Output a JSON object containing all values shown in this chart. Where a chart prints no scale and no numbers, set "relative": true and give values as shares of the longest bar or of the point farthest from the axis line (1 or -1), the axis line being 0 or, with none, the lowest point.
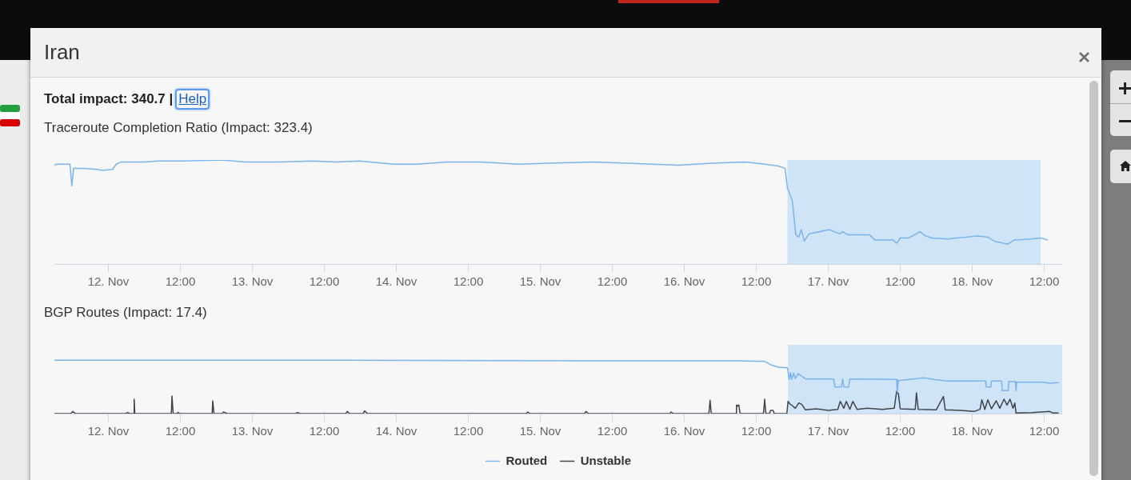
{
  "chart_data": [
    {
      "type": "line",
      "title": "Traceroute Completion Ratio (Impact: 323.4)",
      "annotations": [
        "Iran",
        "Total impact: 340.7 |",
        "Help"
      ],
      "relative": true,
      "tick_labels": "x",
      "x": [
        "--11-11T15:00",
        "--11-11T15:24",
        "--11-11T17:36",
        "--11-11T17:54",
        "--11-11T18:12",
        "--11-11T19:54",
        "--11-11T22:12",
        "--11-11T23:00",
        "--11-12T00:42",
        "--11-12T01:18",
        "--11-12T02:06",
        "--11-12T06:00",
        "--11-12T08:18",
        "--11-12T12:42",
        "--11-12T18:54",
        "--11-12T22:48",
        "--11-13T04:30",
        "--11-13T10:06",
        "--11-13T14:00",
        "--11-13T17:54",
        "--11-13T23:30",
        "--11-14T03:24",
        "--11-14T08:30",
        "--11-14T14:06",
        "--11-14T20:18",
        "--11-15T01:18",
        "--11-15T08:54",
        "--11-15T14:30",
        "--11-15T23:00",
        "--11-16T04:36",
        "--11-16T10:12",
        "--11-16T13:30",
        "--11-16T15:48",
        "--11-16T16:48",
        "--11-16T17:12",
        "--11-16T18:00",
        "--11-16T18:36",
        "--11-16T19:06",
        "--11-16T19:30",
        "--11-16T20:00",
        "--11-16T20:48",
        "--11-17T00:12",
        "--11-17T01:54",
        "--11-17T02:24",
        "--11-17T03:18",
        "--11-17T06:54",
        "--11-17T07:48",
        "--11-17T10:48",
        "--11-17T11:24",
        "--11-17T12:00",
        "--11-17T13:24",
        "--11-17T15:18",
        "--11-17T16:12",
        "--11-17T17:18",
        "--11-17T19:48",
        "--11-18T00:54",
        "--11-18T02:30",
        "--11-18T03:42",
        "--11-18T05:54",
        "--11-18T07:00",
        "--11-18T09:48",
        "--11-18T11:30",
        "--11-18T12:36"
      ],
      "series": [
        {
          "color": "#7cb5ec",
          "values": [
            0.95,
            0.96,
            0.96,
            0.75,
            0.92,
            0.92,
            0.91,
            0.9,
            0.91,
            0.96,
            0.98,
            0.98,
            0.99,
            0.99,
            1,
            0.98,
            0.98,
            0.99,
            0.98,
            0.99,
            0.96,
            0.96,
            0.98,
            0.98,
            0.96,
            0.97,
            0.98,
            0.97,
            0.95,
            0.97,
            0.98,
            0.96,
            0.94,
            0.92,
            0.73,
            0.61,
            0.28,
            0.26,
            0.33,
            0.22,
            0.29,
            0.33,
            0.29,
            0.31,
            0.28,
            0.28,
            0.23,
            0.23,
            0.2,
            0.25,
            0.25,
            0.31,
            0.27,
            0.25,
            0.24,
            0.27,
            0.26,
            0.22,
            0.19,
            0.23,
            0.24,
            0.25,
            0.23
          ]
        }
      ],
      "xlim": [
        "--11-11T15:00",
        "--11-18T15:00"
      ],
      "xticks": [
        {
          "value": "--11-12",
          "label": "12. Nov"
        },
        {
          "value": "--11-12T12:00",
          "label": "12:00"
        },
        {
          "value": "--11-13",
          "label": "13. Nov"
        },
        {
          "value": "--11-13T12:00",
          "label": "12:00"
        },
        {
          "value": "--11-14",
          "label": "14. Nov"
        },
        {
          "value": "--11-14T12:00",
          "label": "12:00"
        },
        {
          "value": "--11-15",
          "label": "15. Nov"
        },
        {
          "value": "--11-15T12:00",
          "label": "12:00"
        },
        {
          "value": "--11-16",
          "label": "16. Nov"
        },
        {
          "value": "--11-16T12:00",
          "label": "12:00"
        },
        {
          "value": "--11-17",
          "label": "17. Nov"
        },
        {
          "value": "--11-17T12:00",
          "label": "12:00"
        },
        {
          "value": "--11-18",
          "label": "18. Nov"
        },
        {
          "value": "--11-18T12:00",
          "label": "12:00"
        }
      ],
      "bands": [
        {
          "axis": "x",
          "from": "--11-16T17:12",
          "to": "--11-18T11:24",
          "color": "#cfe4f6"
        }
      ]
    },
    {
      "type": "line",
      "title": "BGP Routes (Impact: 17.4)",
      "relative": true,
      "tick_labels": "x",
      "legend": "bottom",
      "series": [
        {
          "name": "Routed",
          "color": "#7cb5ec",
          "x": [
            "--11-11T15:00",
            "--11-13T16:00",
            "--11-15T08:00",
            "--11-16T08:54",
            "--11-16T13:24",
            "--11-16T14:30",
            "--11-16T15:42",
            "--11-16T17:12",
            "--11-16T17:30",
            "--11-16T17:42",
            "--11-16T17:54",
            "--11-16T18:12",
            "--11-16T18:30",
            "--11-16T19:00",
            "--11-16T20:12",
            "--11-17T00:54",
            "--11-17T01:06",
            "--11-17T02:12",
            "--11-17T02:24",
            "--11-17T02:36",
            "--11-17T03:24",
            "--11-17T03:36",
            "--11-17T10:00",
            "--11-17T11:24",
            "--11-17T11:30",
            "--11-17T11:42",
            "--11-17T15:54",
            "--11-17T17:36",
            "--11-17T19:48",
            "--11-18T02:12",
            "--11-18T02:18",
            "--11-18T03:06",
            "--11-18T03:12",
            "--11-18T04:54",
            "--11-18T05:00",
            "--11-18T06:00",
            "--11-18T06:06",
            "--11-18T07:12",
            "--11-18T07:18",
            "--11-18T07:24",
            "--11-18T11:42",
            "--11-18T12:54",
            "--11-18T14:24"
          ],
          "values": [
            1,
            1,
            0.99,
            0.99,
            0.98,
            0.91,
            0.87,
            0.86,
            0.64,
            0.77,
            0.64,
            0.76,
            0.66,
            0.75,
            0.65,
            0.65,
            0.5,
            0.5,
            0.65,
            0.5,
            0.5,
            0.65,
            0.64,
            0.64,
            0.4,
            0.62,
            0.67,
            0.64,
            0.61,
            0.61,
            0.5,
            0.5,
            0.61,
            0.61,
            0.43,
            0.43,
            0.6,
            0.6,
            0.43,
            0.59,
            0.59,
            0.57,
            0.58
          ]
        },
        {
          "name": "Unstable",
          "color": "#434348",
          "x": [
            "--11-11T15:00",
            "--11-11T17:42",
            "--11-11T18:06",
            "--11-11T18:30",
            "--11-12T02:54",
            "--11-12T03:12",
            "--11-12T03:30",
            "--11-12T04:12",
            "--11-12T04:18",
            "--11-12T04:24",
            "--11-12T10:30",
            "--11-12T10:36",
            "--11-12T10:48",
            "--11-12T11:24",
            "--11-12T11:36",
            "--11-12T11:54",
            "--11-12T17:18",
            "--11-12T17:24",
            "--11-12T17:36",
            "--11-12T19:00",
            "--11-12T19:12",
            "--11-12T19:48",
            "--11-13T07:18",
            "--11-13T07:30",
            "--11-13T08:00",
            "--11-13T15:36",
            "--11-13T15:48",
            "--11-13T16:12",
            "--11-13T18:30",
            "--11-13T18:42",
            "--11-13T19:12",
            "--11-14T21:42",
            "--11-14T21:54",
            "--11-14T22:18",
            "--11-15T07:24",
            "--11-15T07:36",
            "--11-15T08:00",
            "--11-15T21:36",
            "--11-15T21:48",
            "--11-15T22:12",
            "--11-16T04:06",
            "--11-16T04:18",
            "--11-16T04:30",
            "--11-16T08:36",
            "--11-16T08:42",
            "--11-16T08:54",
            "--11-16T09:06",
            "--11-16T09:18",
            "--11-16T13:12",
            "--11-16T13:24",
            "--11-16T13:36",
            "--11-16T14:12",
            "--11-16T14:24",
            "--11-16T14:48",
            "--11-16T15:00",
            "--11-16T17:06",
            "--11-16T17:18",
            "--11-16T17:36",
            "--11-16T18:00",
            "--11-16T18:30",
            "--11-16T19:06",
            "--11-16T19:36",
            "--11-16T20:12",
            "--11-16T22:00",
            "--11-17T00:00",
            "--11-17T01:36",
            "--11-17T02:00",
            "--11-17T02:36",
            "--11-17T03:00",
            "--11-17T03:36",
            "--11-17T04:06",
            "--11-17T04:48",
            "--11-17T06:30",
            "--11-17T09:00",
            "--11-17T11:00",
            "--11-17T11:24",
            "--11-17T11:42",
            "--11-17T12:00",
            "--11-17T14:30",
            "--11-17T14:42",
            "--11-17T15:00",
            "--11-17T18:00",
            "--11-17T19:12",
            "--11-17T19:30",
            "--11-17T22:00",
            "--11-18T00:18",
            "--11-18T01:18",
            "--11-18T01:36",
            "--11-18T02:06",
            "--11-18T02:36",
            "--11-18T03:12",
            "--11-18T04:00",
            "--11-18T04:36",
            "--11-18T05:18",
            "--11-18T05:48",
            "--11-18T06:18",
            "--11-18T06:48",
            "--11-18T07:06",
            "--11-18T07:18",
            "--11-18T10:00",
            "--11-18T12:54",
            "--11-18T13:30",
            "--11-18T14:24"
          ],
          "values": [
            0,
            0,
            0.04,
            0,
            0,
            0.02,
            0,
            0,
            0.27,
            0,
            0,
            0.33,
            0,
            0,
            0.02,
            0,
            0,
            0.24,
            0,
            0,
            0.03,
            0,
            0,
            0.02,
            0,
            0,
            0.04,
            0,
            0,
            0.05,
            0,
            0,
            0.03,
            0,
            0,
            0.04,
            0,
            0,
            0.03,
            0,
            0,
            0.25,
            0,
            0,
            0.16,
            0.14,
            0.16,
            0,
            0,
            0.27,
            0,
            0,
            0.06,
            0.06,
            0,
            0,
            0.23,
            0.18,
            0.15,
            0.1,
            0.2,
            0.17,
            0.07,
            0.09,
            0.06,
            0.08,
            0.23,
            0.1,
            0.23,
            0.08,
            0.23,
            0.08,
            0.1,
            0.08,
            0.1,
            0.42,
            0.37,
            0.09,
            0.08,
            0.39,
            0.08,
            0.07,
            0.32,
            0.07,
            0.06,
            0.04,
            0.08,
            0.26,
            0.08,
            0.26,
            0.09,
            0.24,
            0.1,
            0.27,
            0.16,
            0.27,
            0.1,
            0.2,
            0.01,
            0.02,
            0.04,
            0.01,
            0.01
          ]
        }
      ],
      "xlim": [
        "--11-11T15:00",
        "--11-18T15:00"
      ],
      "xticks": [
        {
          "value": "--11-12",
          "label": "12. Nov"
        },
        {
          "value": "--11-12T12:00",
          "label": "12:00"
        },
        {
          "value": "--11-13",
          "label": "13. Nov"
        },
        {
          "value": "--11-13T12:00",
          "label": "12:00"
        },
        {
          "value": "--11-14",
          "label": "14. Nov"
        },
        {
          "value": "--11-14T12:00",
          "label": "12:00"
        },
        {
          "value": "--11-15",
          "label": "15. Nov"
        },
        {
          "value": "--11-15T12:00",
          "label": "12:00"
        },
        {
          "value": "--11-16",
          "label": "16. Nov"
        },
        {
          "value": "--11-16T12:00",
          "label": "12:00"
        },
        {
          "value": "--11-17",
          "label": "17. Nov"
        },
        {
          "value": "--11-17T12:00",
          "label": "12:00"
        },
        {
          "value": "--11-18",
          "label": "18. Nov"
        },
        {
          "value": "--11-18T12:00",
          "label": "12:00"
        }
      ],
      "bands": [
        {
          "axis": "x",
          "from": "--11-16T17:18",
          "to": "--11-18T15:00",
          "color": "#cfe4f6"
        }
      ]
    }
  ]
}
